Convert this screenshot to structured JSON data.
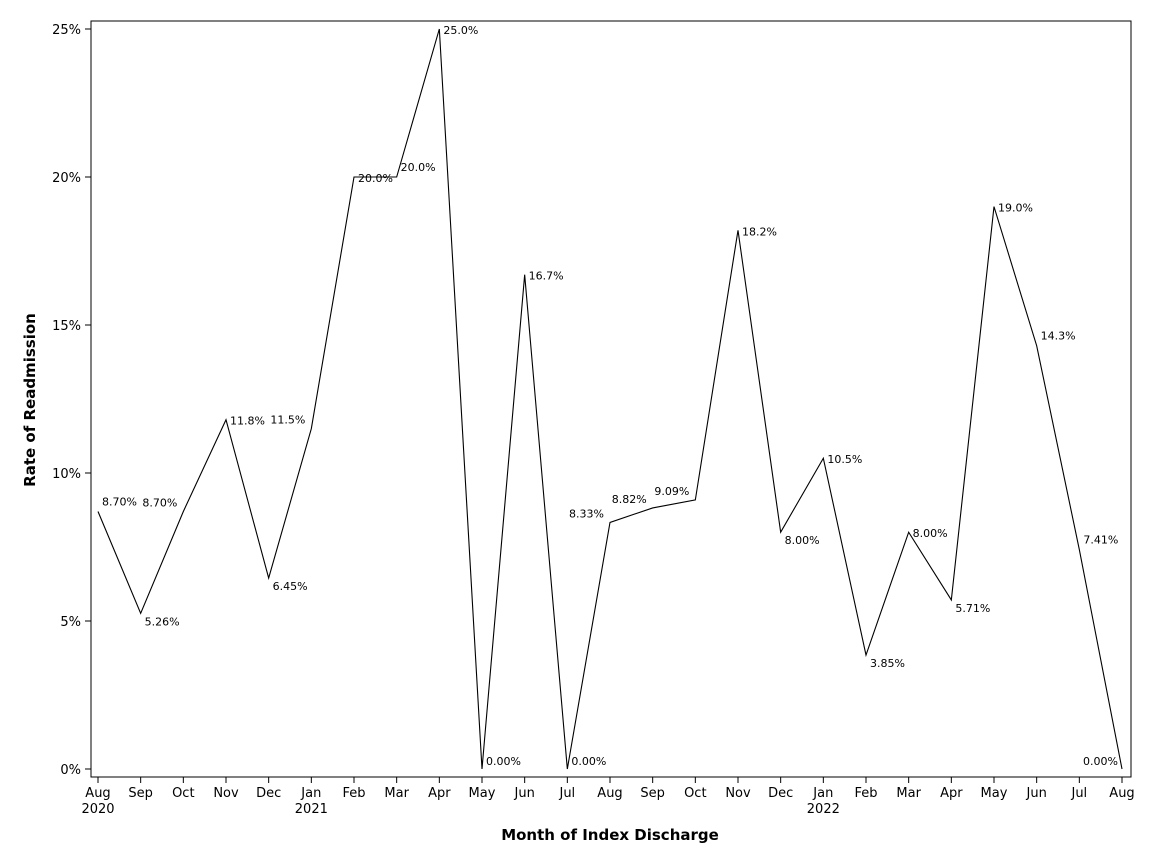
{
  "chart_data": {
    "type": "line",
    "title": "",
    "xlabel": "Month of Index Discharge",
    "ylabel": "Rate of Readmission",
    "ylim": [
      0,
      25
    ],
    "yticks": [
      "0%",
      "5%",
      "10%",
      "15%",
      "20%",
      "25%"
    ],
    "yticks_values": [
      0,
      5,
      10,
      15,
      20,
      25
    ],
    "grid": false,
    "legend": "none",
    "line_color": "#000000",
    "points": [
      {
        "month": "Aug",
        "year": "2020",
        "value": 8.7,
        "label": "8.70%"
      },
      {
        "month": "Sep",
        "year": "",
        "value": 5.26,
        "label": "5.26%"
      },
      {
        "month": "Oct",
        "year": "",
        "value": 8.7,
        "label": "8.70%"
      },
      {
        "month": "Nov",
        "year": "",
        "value": 11.8,
        "label": "11.8%"
      },
      {
        "month": "Dec",
        "year": "",
        "value": 6.45,
        "label": "6.45%"
      },
      {
        "month": "Jan",
        "year": "2021",
        "value": 11.5,
        "label": "11.5%"
      },
      {
        "month": "Feb",
        "year": "",
        "value": 20.0,
        "label": "20.0%"
      },
      {
        "month": "Mar",
        "year": "",
        "value": 20.0,
        "label": "20.0%"
      },
      {
        "month": "Apr",
        "year": "",
        "value": 25.0,
        "label": "25.0%"
      },
      {
        "month": "May",
        "year": "",
        "value": 0.0,
        "label": "0.00%"
      },
      {
        "month": "Jun",
        "year": "",
        "value": 16.7,
        "label": "16.7%"
      },
      {
        "month": "Jul",
        "year": "",
        "value": 0.0,
        "label": "0.00%"
      },
      {
        "month": "Aug",
        "year": "",
        "value": 8.33,
        "label": "8.33%"
      },
      {
        "month": "Sep",
        "year": "",
        "value": 8.82,
        "label": "8.82%"
      },
      {
        "month": "Oct",
        "year": "",
        "value": 9.09,
        "label": "9.09%"
      },
      {
        "month": "Nov",
        "year": "",
        "value": 18.2,
        "label": "18.2%"
      },
      {
        "month": "Dec",
        "year": "",
        "value": 8.0,
        "label": "8.00%"
      },
      {
        "month": "Jan",
        "year": "2022",
        "value": 10.5,
        "label": "10.5%"
      },
      {
        "month": "Feb",
        "year": "",
        "value": 3.85,
        "label": "3.85%"
      },
      {
        "month": "Mar",
        "year": "",
        "value": 8.0,
        "label": "8.00%"
      },
      {
        "month": "Apr",
        "year": "",
        "value": 5.71,
        "label": "5.71%"
      },
      {
        "month": "May",
        "year": "",
        "value": 19.0,
        "label": "19.0%"
      },
      {
        "month": "Jun",
        "year": "",
        "value": 14.3,
        "label": "14.3%"
      },
      {
        "month": "Jul",
        "year": "",
        "value": 7.41,
        "label": "7.41%"
      },
      {
        "month": "Aug",
        "year": "",
        "value": 0.0,
        "label": "0.00%"
      }
    ]
  }
}
